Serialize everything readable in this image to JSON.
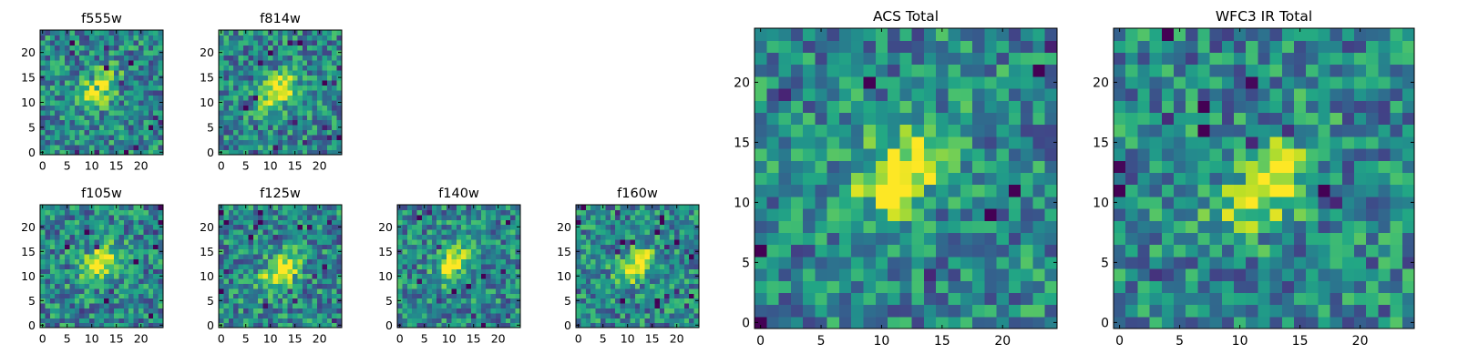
{
  "chart_data": [
    {
      "type": "heatmap",
      "title": "f555w",
      "x_range": [
        -0.5,
        24.5
      ],
      "y_range": [
        -0.5,
        24.5
      ],
      "grid": false,
      "colormap": "viridis",
      "source_center": [
        11.5,
        13.0
      ],
      "x_ticks": [
        0,
        5,
        10,
        15,
        20
      ],
      "y_ticks": [
        0,
        5,
        10,
        15,
        20
      ],
      "x_tick_labels": [
        "0",
        "5",
        "10",
        "15",
        "20"
      ],
      "y_tick_labels": [
        "0",
        "5",
        "10",
        "15",
        "20"
      ]
    },
    {
      "type": "heatmap",
      "title": "f814w",
      "x_range": [
        -0.5,
        24.5
      ],
      "y_range": [
        -0.5,
        24.5
      ],
      "grid": false,
      "colormap": "viridis",
      "source_center": [
        11.5,
        12.5
      ],
      "x_ticks": [
        0,
        5,
        10,
        15,
        20
      ],
      "y_ticks": [
        0,
        5,
        10,
        15,
        20
      ],
      "x_tick_labels": [
        "0",
        "5",
        "10",
        "15",
        "20"
      ],
      "y_tick_labels": [
        "0",
        "5",
        "10",
        "15",
        "20"
      ]
    },
    {
      "type": "heatmap",
      "title": "f105w",
      "x_range": [
        -0.5,
        24.5
      ],
      "y_range": [
        -0.5,
        24.5
      ],
      "grid": false,
      "colormap": "viridis",
      "source_center": [
        11.5,
        12.5
      ],
      "x_ticks": [
        0,
        5,
        10,
        15,
        20
      ],
      "y_ticks": [
        0,
        5,
        10,
        15,
        20
      ],
      "x_tick_labels": [
        "0",
        "5",
        "10",
        "15",
        "20"
      ],
      "y_tick_labels": [
        "0",
        "5",
        "10",
        "15",
        "20"
      ]
    },
    {
      "type": "heatmap",
      "title": "f125w",
      "x_range": [
        -0.5,
        24.5
      ],
      "y_range": [
        -0.5,
        24.5
      ],
      "grid": false,
      "colormap": "viridis",
      "source_center": [
        12.0,
        11.0
      ],
      "x_ticks": [
        0,
        5,
        10,
        15,
        20
      ],
      "y_ticks": [
        0,
        5,
        10,
        15,
        20
      ],
      "x_tick_labels": [
        "0",
        "5",
        "10",
        "15",
        "20"
      ],
      "y_tick_labels": [
        "0",
        "5",
        "10",
        "15",
        "20"
      ]
    },
    {
      "type": "heatmap",
      "title": "f140w",
      "x_range": [
        -0.5,
        24.5
      ],
      "y_range": [
        -0.5,
        24.5
      ],
      "grid": false,
      "colormap": "viridis",
      "source_center": [
        11.0,
        13.0
      ],
      "x_ticks": [
        0,
        5,
        10,
        15,
        20
      ],
      "y_ticks": [
        0,
        5,
        10,
        15,
        20
      ],
      "x_tick_labels": [
        "0",
        "5",
        "10",
        "15",
        "20"
      ],
      "y_tick_labels": [
        "0",
        "5",
        "10",
        "15",
        "20"
      ]
    },
    {
      "type": "heatmap",
      "title": "f160w",
      "x_range": [
        -0.5,
        24.5
      ],
      "y_range": [
        -0.5,
        24.5
      ],
      "grid": false,
      "colormap": "viridis",
      "source_center": [
        11.5,
        12.0
      ],
      "x_ticks": [
        0,
        5,
        10,
        15,
        20
      ],
      "y_ticks": [
        0,
        5,
        10,
        15,
        20
      ],
      "x_tick_labels": [
        "0",
        "5",
        "10",
        "15",
        "20"
      ],
      "y_tick_labels": [
        "0",
        "5",
        "10",
        "15",
        "20"
      ]
    },
    {
      "type": "heatmap",
      "title": "ACS Total",
      "x_range": [
        -0.5,
        24.5
      ],
      "y_range": [
        -0.5,
        24.5
      ],
      "grid": false,
      "colormap": "viridis",
      "source_center": [
        11.5,
        12.5
      ],
      "x_ticks": [
        0,
        5,
        10,
        15,
        20
      ],
      "y_ticks": [
        0,
        5,
        10,
        15,
        20
      ],
      "x_tick_labels": [
        "0",
        "5",
        "10",
        "15",
        "20"
      ],
      "y_tick_labels": [
        "0",
        "5",
        "10",
        "15",
        "20"
      ]
    },
    {
      "type": "heatmap",
      "title": "WFC3 IR Total",
      "x_range": [
        -0.5,
        24.5
      ],
      "y_range": [
        -0.5,
        24.5
      ],
      "grid": false,
      "colormap": "viridis",
      "source_center": [
        12.0,
        11.5
      ],
      "x_ticks": [
        0,
        5,
        10,
        15,
        20
      ],
      "y_ticks": [
        0,
        5,
        10,
        15,
        20
      ],
      "x_tick_labels": [
        "0",
        "5",
        "10",
        "15",
        "20"
      ],
      "y_tick_labels": [
        "0",
        "5",
        "10",
        "15",
        "20"
      ]
    }
  ]
}
